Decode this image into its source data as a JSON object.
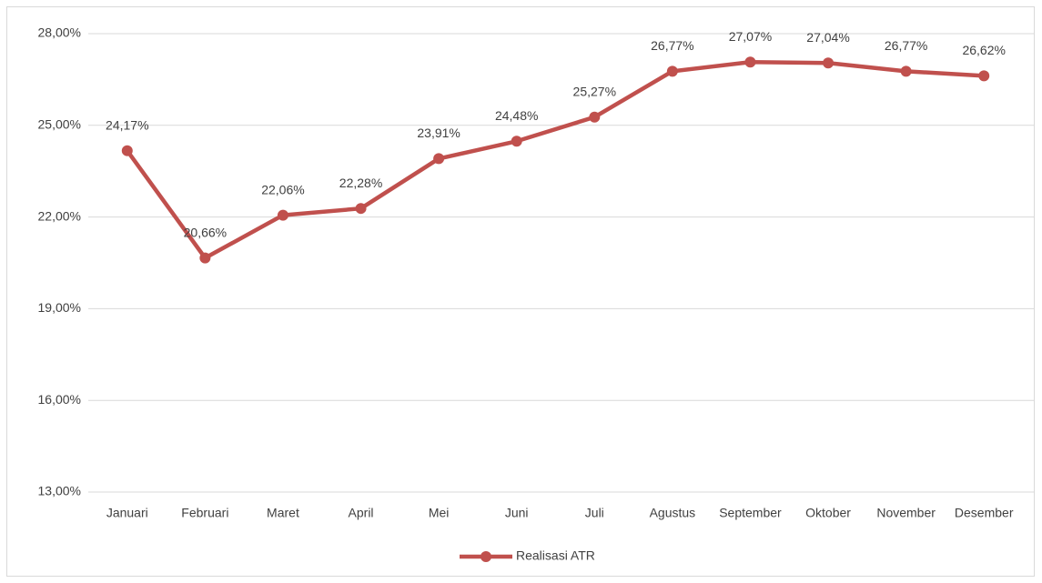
{
  "chart_data": {
    "type": "line",
    "categories": [
      "Januari",
      "Februari",
      "Maret",
      "April",
      "Mei",
      "Juni",
      "Juli",
      "Agustus",
      "September",
      "Oktober",
      "November",
      "Desember"
    ],
    "series": [
      {
        "name": "Realisasi ATR",
        "color": "#c0504d",
        "values": [
          24.17,
          20.66,
          22.06,
          22.28,
          23.91,
          24.48,
          25.27,
          26.77,
          27.07,
          27.04,
          26.77,
          26.62
        ],
        "value_labels": [
          "24,17%",
          "20,66%",
          "22,06%",
          "22,28%",
          "23,91%",
          "24,48%",
          "25,27%",
          "26,77%",
          "27,07%",
          "27,04%",
          "26,77%",
          "26,62%"
        ]
      }
    ],
    "ylim": [
      13,
      28
    ],
    "yticks": [
      {
        "value": 13,
        "label": "13,00%"
      },
      {
        "value": 16,
        "label": "16,00%"
      },
      {
        "value": 19,
        "label": "19,00%"
      },
      {
        "value": 22,
        "label": "22,00%"
      },
      {
        "value": 25,
        "label": "25,00%"
      },
      {
        "value": 28,
        "label": "28,00%"
      }
    ],
    "grid": true,
    "legend": "bottom"
  }
}
